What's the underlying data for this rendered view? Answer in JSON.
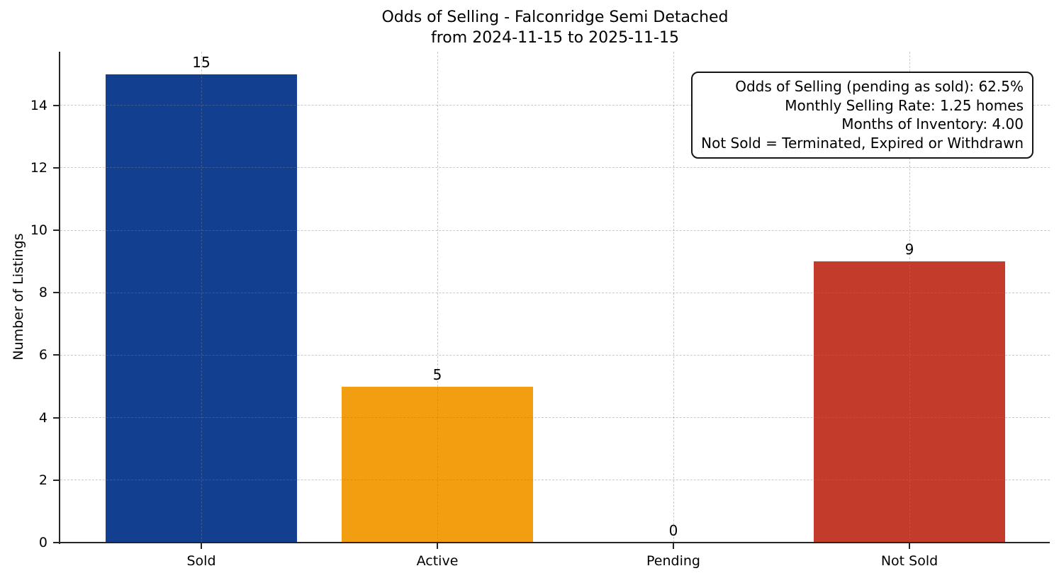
{
  "chart_data": {
    "type": "bar",
    "title": "Odds of Selling - Falconridge Semi Detached",
    "subtitle": "from 2024-11-15 to 2025-11-15",
    "categories": [
      "Sold",
      "Active",
      "Pending",
      "Not Sold"
    ],
    "values": [
      15,
      5,
      0,
      9
    ],
    "value_labels": [
      "15",
      "5",
      "0",
      "9"
    ],
    "bar_colors": [
      "#133f91",
      "#f39d11",
      null,
      "#c33c2b"
    ],
    "xlabel": "",
    "ylabel": "Number of Listings",
    "yticks": [
      0,
      2,
      4,
      6,
      8,
      10,
      12,
      14
    ],
    "ylim": [
      0,
      15.72
    ],
    "grid": {
      "axis": "both",
      "style": "dashed",
      "on_top_of_bars": true
    },
    "legend": "none",
    "annotation": {
      "position": "top-right",
      "lines": [
        "Odds of Selling (pending as sold): 62.5%",
        "Monthly Selling Rate: 1.25 homes",
        "Months of Inventory: 4.00",
        "Not Sold = Terminated, Expired or Withdrawn"
      ],
      "stats": {
        "odds_of_selling_pending_as_sold": "62.5%",
        "monthly_selling_rate_homes": "1.25",
        "months_of_inventory": "4.00",
        "not_sold_definition": "Terminated, Expired or Withdrawn"
      }
    }
  }
}
